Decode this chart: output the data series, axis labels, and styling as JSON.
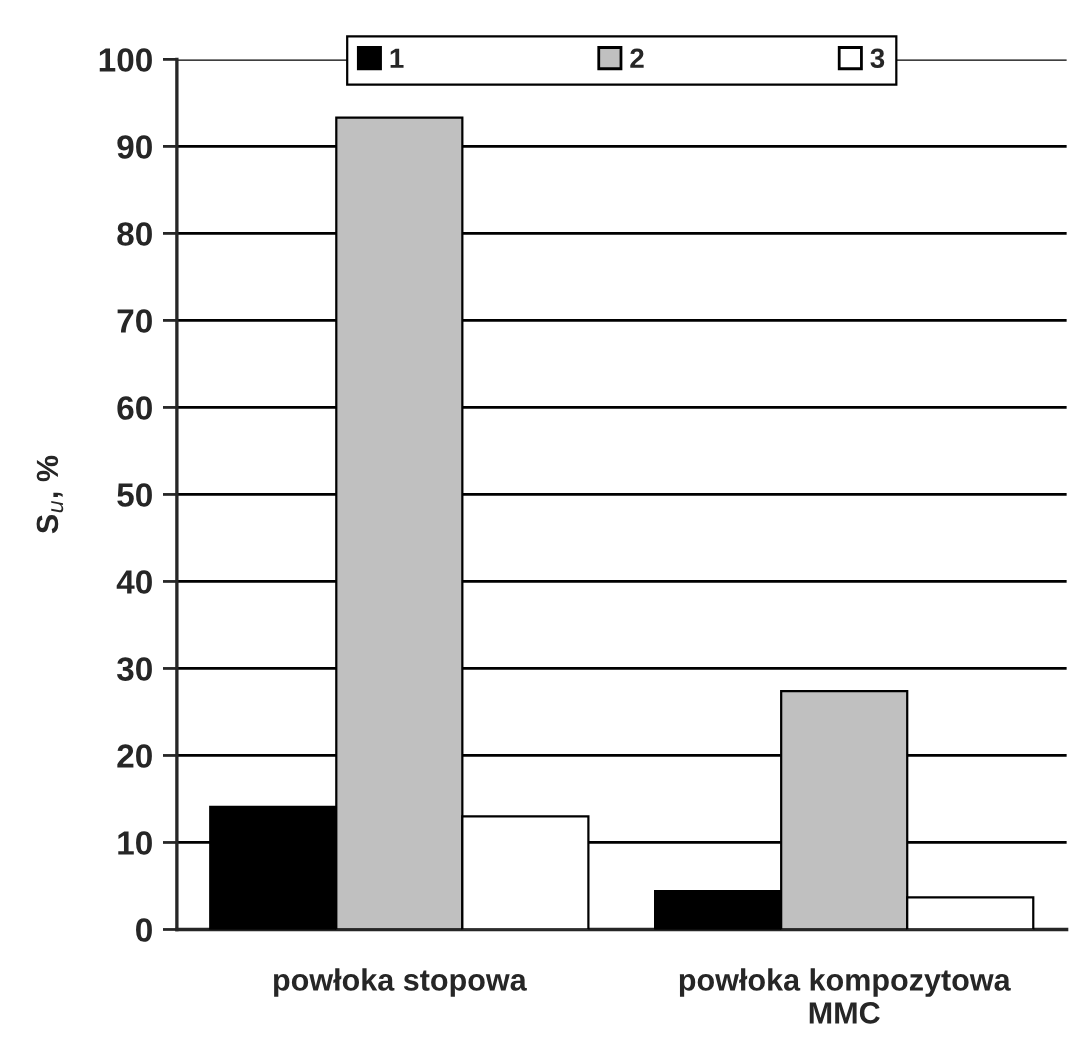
{
  "chart_data": {
    "type": "bar",
    "ylabel": "S$_{u}$, %",
    "categories": [
      "powłoka stopowa",
      "powłoka kompozytowa\nMMC"
    ],
    "series": [
      {
        "name": "1",
        "color": "#000000",
        "values": [
          14.1,
          4.4
        ]
      },
      {
        "name": "2",
        "color": "#c0c0c0",
        "values": [
          93.3,
          27.4
        ]
      },
      {
        "name": "3",
        "color": "#ffffff",
        "values": [
          13.0,
          3.7
        ]
      }
    ],
    "ylim": [
      0,
      100
    ],
    "yticks": [
      0,
      10,
      20,
      30,
      40,
      50,
      60,
      70,
      80,
      90,
      100
    ],
    "grid": true,
    "legend": "top"
  }
}
